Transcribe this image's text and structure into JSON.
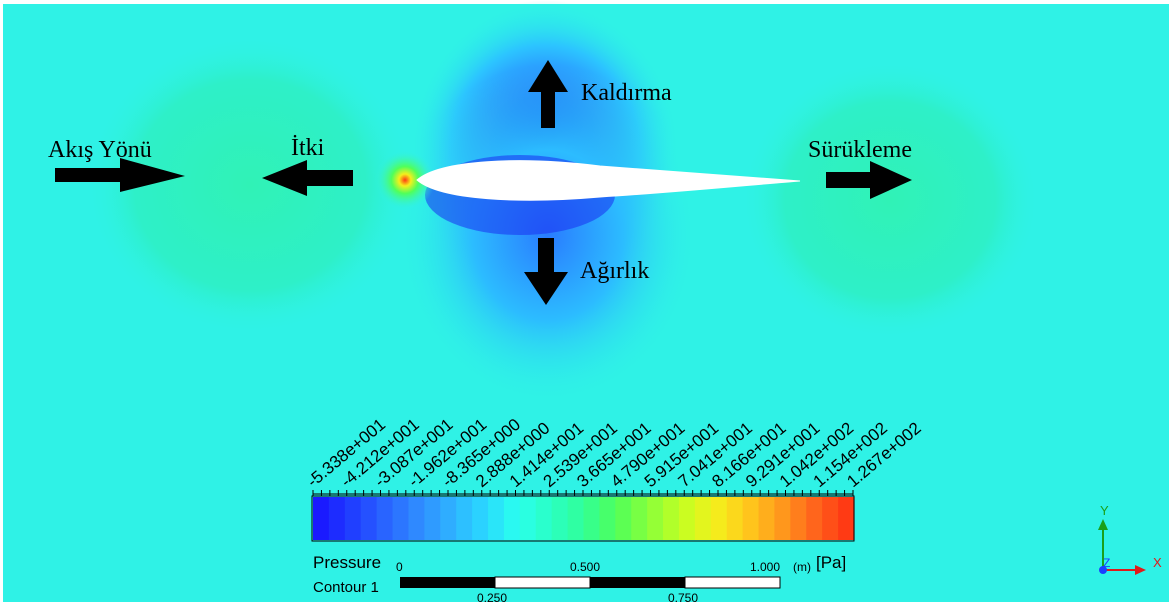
{
  "labels": {
    "flow_direction": "Akış Yönü",
    "thrust": "İtki",
    "lift": "Kaldırma",
    "drag": "Sürükleme",
    "weight": "Ağırlık"
  },
  "legend": {
    "variable": "Pressure",
    "unit": "[Pa]",
    "contour_name": "Contour 1",
    "ticks": [
      "-5.338e+001",
      "-4.212e+001",
      "-3.087e+001",
      "-1.962e+001",
      "-8.365e+000",
      "2.888e+000",
      "1.414e+001",
      "2.539e+001",
      "3.665e+001",
      "4.790e+001",
      "5.915e+001",
      "7.041e+001",
      "8.166e+001",
      "9.291e+001",
      "1.042e+002",
      "1.154e+002",
      "1.267e+002"
    ],
    "colors": [
      "#1a1aff",
      "#2040ff",
      "#2a66ff",
      "#2f8cff",
      "#2fb2ff",
      "#2ad8ff",
      "#2affee",
      "#2affc4",
      "#30ff98",
      "#50ff5a",
      "#8aff3a",
      "#c4ff22",
      "#f4f01c",
      "#ffc81c",
      "#ff9a1c",
      "#ff661c",
      "#ff3a14"
    ]
  },
  "scale": {
    "top_labels": [
      "0",
      "0.500",
      "1.000"
    ],
    "unit": "(m)",
    "bottom_labels": [
      "0.250",
      "0.750"
    ]
  },
  "axes": {
    "x": "X",
    "y": "Y",
    "z": "Z"
  },
  "colors": {
    "background": "#2ff2e6",
    "far_field": "#2ee8d0",
    "low_pressure": "#1a40ff",
    "high_pressure": "#f4f01c",
    "arrow": "#000000"
  }
}
